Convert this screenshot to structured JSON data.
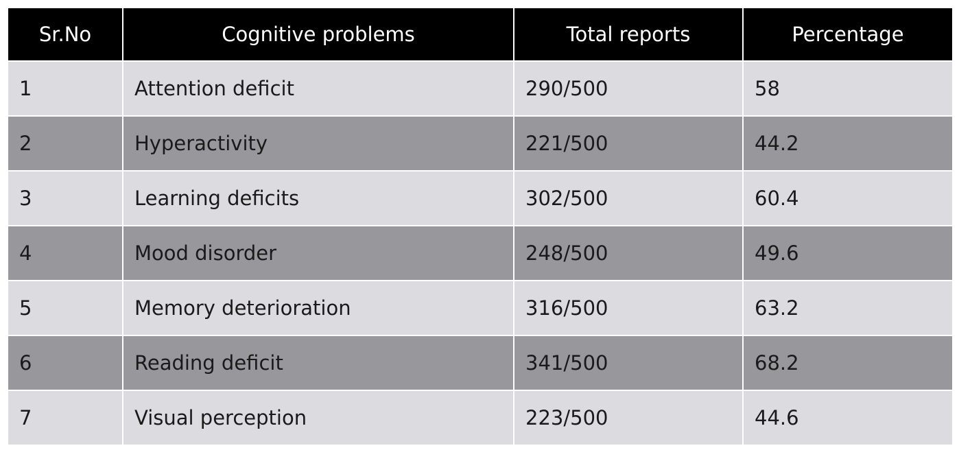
{
  "table": {
    "headers": [
      "Sr.No",
      "Cognitive problems",
      "Total reports",
      "Percentage"
    ],
    "rows": [
      [
        "1",
        "Attention deficit",
        "290/500",
        "58"
      ],
      [
        "2",
        "Hyperactivity",
        "221/500",
        "44.2"
      ],
      [
        "3",
        "Learning deficits",
        "302/500",
        "60.4"
      ],
      [
        "4",
        "Mood disorder",
        "248/500",
        "49.6"
      ],
      [
        "5",
        "Memory deterioration",
        "316/500",
        "63.2"
      ],
      [
        "6",
        "Reading deficit",
        "341/500",
        "68.2"
      ],
      [
        "7",
        "Visual perception",
        "223/500",
        "44.6"
      ]
    ]
  },
  "colors": {
    "header_bg": "#000000",
    "header_text": "#ffffff",
    "row_light": "#dcdbe0",
    "row_dark": "#98979b"
  }
}
